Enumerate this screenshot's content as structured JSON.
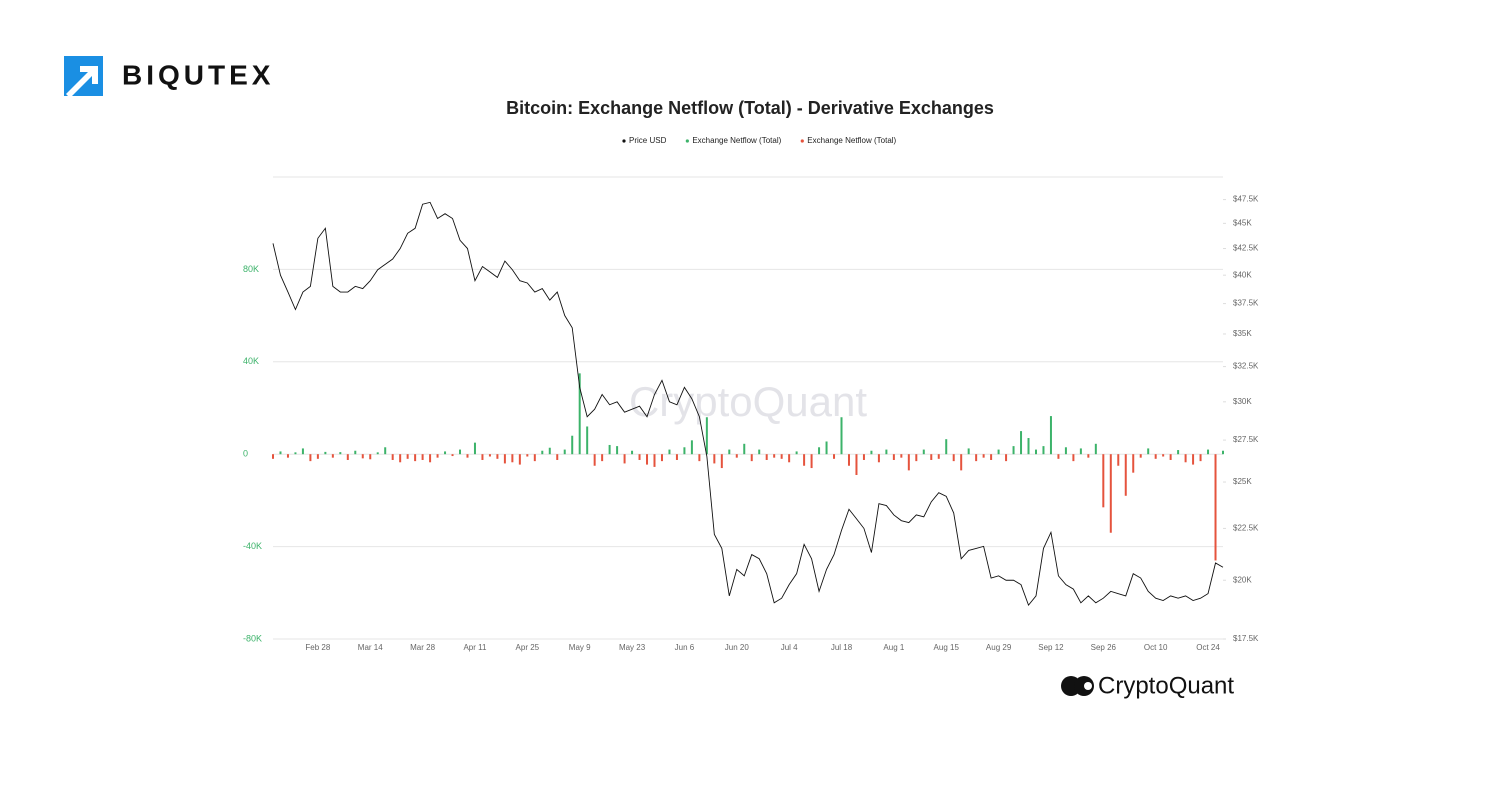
{
  "brand": "BIQUTEX",
  "source_logo": "CryptoQuant",
  "chart_data": {
    "type": "bar",
    "title": "Bitcoin: Exchange Netflow (Total) - Derivative Exchanges",
    "watermark": "CryptoQuant",
    "categories": [
      null,
      null,
      null,
      null,
      null,
      null,
      "Feb 28",
      null,
      null,
      null,
      null,
      null,
      null,
      "Mar 14",
      null,
      null,
      null,
      null,
      null,
      null,
      "Mar 28",
      null,
      null,
      null,
      null,
      null,
      null,
      "Apr 11",
      null,
      null,
      null,
      null,
      null,
      null,
      "Apr 25",
      null,
      null,
      null,
      null,
      null,
      null,
      "May 9",
      null,
      null,
      null,
      null,
      null,
      null,
      "May 23",
      null,
      null,
      null,
      null,
      null,
      null,
      "Jun 6",
      null,
      null,
      null,
      null,
      null,
      null,
      "Jun 20",
      null,
      null,
      null,
      null,
      null,
      null,
      "Jul 4",
      null,
      null,
      null,
      null,
      null,
      null,
      "Jul 18",
      null,
      null,
      null,
      null,
      null,
      null,
      "Aug 1",
      null,
      null,
      null,
      null,
      null,
      null,
      "Aug 15",
      null,
      null,
      null,
      null,
      null,
      null,
      "Aug 29",
      null,
      null,
      null,
      null,
      null,
      null,
      "Sep 12",
      null,
      null,
      null,
      null,
      null,
      null,
      "Sep 26",
      null,
      null,
      null,
      null,
      null,
      null,
      "Oct 10",
      null,
      null,
      null,
      null,
      null,
      null,
      "Oct 24",
      null,
      null
    ],
    "series": [
      {
        "name": "Price USD",
        "color": "#111111",
        "type": "line",
        "axis": "y2",
        "values": [
          43000,
          40000,
          38500,
          37000,
          38500,
          39000,
          43500,
          44500,
          39000,
          38500,
          38500,
          39000,
          38800,
          39500,
          40500,
          41000,
          41500,
          42500,
          44000,
          44500,
          47000,
          47200,
          45500,
          46000,
          45500,
          43300,
          42500,
          39500,
          40800,
          40300,
          39800,
          41300,
          40500,
          39500,
          39300,
          38500,
          38800,
          37800,
          38500,
          36500,
          35500,
          31000,
          29000,
          29500,
          30500,
          29800,
          30000,
          29300,
          29500,
          29700,
          29000,
          30500,
          31500,
          30000,
          29800,
          31000,
          30200,
          29000,
          26500,
          22200,
          21500,
          19300,
          20500,
          20200,
          21200,
          21000,
          20300,
          19000,
          19200,
          19800,
          20300,
          21700,
          21000,
          19500,
          20500,
          21200,
          22400,
          23500,
          23000,
          22500,
          21300,
          23800,
          23700,
          23200,
          22900,
          22800,
          23200,
          23100,
          23900,
          24400,
          24200,
          23300,
          21000,
          21400,
          21500,
          21600,
          20100,
          20200,
          20000,
          20000,
          19800,
          18900,
          19300,
          21500,
          22300,
          20200,
          19800,
          19600,
          19000,
          19300,
          19000,
          19200,
          19500,
          19400,
          19300,
          20300,
          20100,
          19500,
          19200,
          19100,
          19300,
          19200,
          19300,
          19100,
          19200,
          19400,
          20800,
          20600
        ]
      },
      {
        "name": "Exchange Netflow (Total)",
        "color": "#3cb36a",
        "type": "bar",
        "values": [
          null,
          1200,
          null,
          800,
          2500,
          null,
          null,
          1000,
          null,
          900,
          null,
          1500,
          null,
          null,
          800,
          3000,
          null,
          null,
          null,
          null,
          null,
          null,
          null,
          1200,
          null,
          2000,
          null,
          5000,
          null,
          null,
          null,
          null,
          null,
          null,
          null,
          null,
          1500,
          2800,
          null,
          2000,
          8000,
          35000,
          12000,
          null,
          null,
          4000,
          3500,
          null,
          1500,
          null,
          null,
          null,
          null,
          2000,
          null,
          3000,
          6000,
          null,
          16000,
          null,
          null,
          2000,
          null,
          4500,
          null,
          2000,
          null,
          null,
          null,
          null,
          1200,
          null,
          null,
          3000,
          5500,
          null,
          16000,
          null,
          null,
          null,
          1500,
          null,
          2000,
          null,
          null,
          null,
          null,
          2000,
          null,
          null,
          6500,
          null,
          null,
          2500,
          null,
          null,
          null,
          2000,
          null,
          3500,
          10000,
          7000,
          2000,
          3500,
          16500,
          null,
          3000,
          null,
          2500,
          null,
          4500,
          null,
          null,
          null,
          null,
          null,
          null,
          2500,
          null,
          null,
          null,
          1800,
          null,
          null,
          null,
          2000,
          null,
          1500
        ]
      },
      {
        "name": "Exchange Netflow (Total)",
        "color": "#e5533d",
        "type": "bar",
        "values": [
          -2000,
          null,
          -1500,
          null,
          null,
          -3000,
          -2000,
          null,
          -1500,
          null,
          -2500,
          null,
          -1800,
          -2200,
          null,
          null,
          -2500,
          -3500,
          -2000,
          -3000,
          -2500,
          -3500,
          -1500,
          null,
          -800,
          null,
          -1500,
          null,
          -2500,
          -1000,
          -2000,
          -4000,
          -3500,
          -4500,
          -1000,
          -3000,
          null,
          null,
          -2500,
          null,
          null,
          null,
          null,
          -5000,
          -3000,
          null,
          null,
          -4000,
          null,
          -2500,
          -4500,
          -5500,
          -3000,
          null,
          -2500,
          null,
          null,
          -3000,
          null,
          -4000,
          -6000,
          null,
          -1500,
          null,
          -3000,
          null,
          -2500,
          -1500,
          -2000,
          -3500,
          null,
          -5000,
          -6000,
          null,
          null,
          -2000,
          null,
          -5000,
          -9000,
          -2500,
          null,
          -3500,
          null,
          -2500,
          -1500,
          -7000,
          -3000,
          null,
          -2500,
          -2000,
          null,
          -3000,
          -7000,
          null,
          -3000,
          -1500,
          -2500,
          null,
          -3000,
          null,
          null,
          null,
          null,
          null,
          null,
          -2000,
          null,
          -3000,
          null,
          -1500,
          null,
          -23000,
          -34000,
          -5000,
          -18000,
          -8000,
          -1500,
          null,
          -2000,
          -1000,
          -2500,
          null,
          -3500,
          -4500,
          -3000,
          null,
          -46000,
          null
        ]
      }
    ],
    "ylim": [
      -80000,
      120000
    ],
    "yticks": [
      {
        "value": -80000,
        "label": "-80K"
      },
      {
        "value": -40000,
        "label": "-40K"
      },
      0,
      {
        "value": 40000,
        "label": "40K"
      },
      {
        "value": 80000,
        "label": "80K"
      }
    ],
    "y2lim": [
      17500,
      50000
    ],
    "y2log": true,
    "y2ticks": [
      {
        "value": 17500,
        "label": "$17.5K"
      },
      {
        "value": 20000,
        "label": "$20K"
      },
      {
        "value": 22500,
        "label": "$22.5K"
      },
      {
        "value": 25000,
        "label": "$25K"
      },
      {
        "value": 27500,
        "label": "$27.5K"
      },
      {
        "value": 30000,
        "label": "$30K"
      },
      {
        "value": 32500,
        "label": "$32.5K"
      },
      {
        "value": 35000,
        "label": "$35K"
      },
      {
        "value": 37500,
        "label": "$37.5K"
      },
      {
        "value": 40000,
        "label": "$40K"
      },
      {
        "value": 42500,
        "label": "$42.5K"
      },
      {
        "value": 45000,
        "label": "$45K"
      },
      {
        "value": 47500,
        "label": "$47.5K"
      }
    ],
    "grid": true,
    "ytick_color": "#3cb36a"
  }
}
